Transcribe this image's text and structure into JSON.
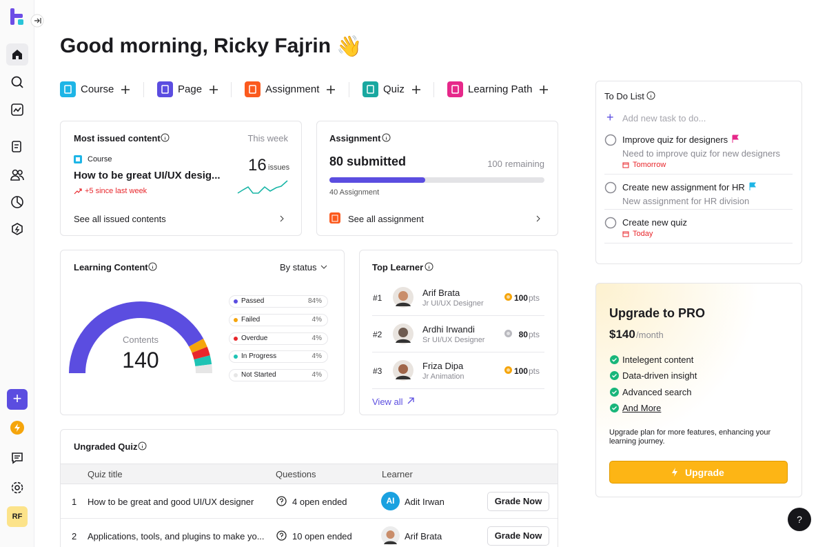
{
  "greeting": {
    "salutation": "Good morning,",
    "user_name": "Ricky Fajrin",
    "emoji": "👋"
  },
  "create_buttons": [
    "Course",
    "Page",
    "Assignment",
    "Quiz",
    "Learning Path"
  ],
  "most_issued": {
    "title": "Most issued content",
    "period": "This week",
    "content_type": "Course",
    "content_title": "How to be great UI/UX desig...",
    "trend": "+5 since last week",
    "issues_count": "16",
    "issues_label": "issues",
    "link": "See all issued contents"
  },
  "assignment": {
    "title": "Assignment",
    "submitted_count": 80,
    "submitted_text": "submitted",
    "remaining_count": 100,
    "remaining_text": "remaining",
    "progress_label": "40 Assignment",
    "link": "See all assignment"
  },
  "learning_content": {
    "title": "Learning Content",
    "filter": "By status",
    "center_label": "Contents",
    "total": "140",
    "statuses": [
      {
        "name": "Passed",
        "value": 84,
        "label": "84%",
        "color": "#5b4de0"
      },
      {
        "name": "Failed",
        "value": 4,
        "label": "4%",
        "color": "#f5a50c"
      },
      {
        "name": "Overdue",
        "value": 4,
        "label": "4%",
        "color": "#e8262b"
      },
      {
        "name": "In Progress",
        "value": 4,
        "label": "4%",
        "color": "#1ec3b4"
      },
      {
        "name": "Not Started",
        "value": 4,
        "label": "4%",
        "color": "#e6e6e6"
      }
    ]
  },
  "top_learner": {
    "title": "Top Learner",
    "link": "View all",
    "learners": [
      {
        "rank": "#1",
        "name": "Arif Brata",
        "role": "Jr UI/UX Designer",
        "points": "100",
        "unit": "pts"
      },
      {
        "rank": "#2",
        "name": "Ardhi Irwandi",
        "role": "Sr UI/UX Designer",
        "points": "80",
        "unit": "pts"
      },
      {
        "rank": "#3",
        "name": "Friza Dipa",
        "role": "Jr Animation",
        "points": "100",
        "unit": "pts"
      }
    ]
  },
  "ungraded_quiz": {
    "title": "Ungraded Quiz",
    "columns": [
      "Quiz title",
      "Questions",
      "Learner"
    ],
    "rows": [
      {
        "number": "1",
        "quiz_title": "How to be great and good UI/UX designer",
        "questions": "4 open ended",
        "learner_initials": "AI",
        "learner": "Adit Irwan",
        "action": "Grade Now"
      },
      {
        "number": "2",
        "quiz_title": "Applications, tools, and plugins to make yo...",
        "questions": "10 open ended",
        "learner": "Arif Brata",
        "action": "Grade Now"
      }
    ]
  },
  "todo": {
    "title": "To Do List",
    "placeholder": "Add new task to do...",
    "items": [
      {
        "title": "Improve quiz for designers",
        "description": "Need to improve quiz for new designers",
        "due": "Tomorrow"
      },
      {
        "title": "Create new assignment for HR",
        "description": "New assignment for HR division"
      },
      {
        "title": "Create new quiz",
        "due": "Today"
      }
    ]
  },
  "upgrade": {
    "title": "Upgrade to PRO",
    "price": "$140",
    "period": "/month",
    "features": [
      "Intelegent content",
      "Data-driven insight",
      "Advanced search",
      "And More"
    ],
    "note": "Upgrade plan for more features, enhancing your learning journey.",
    "button": "Upgrade"
  },
  "sidebar": {
    "avatar_initials": "RF",
    "help": "?"
  }
}
